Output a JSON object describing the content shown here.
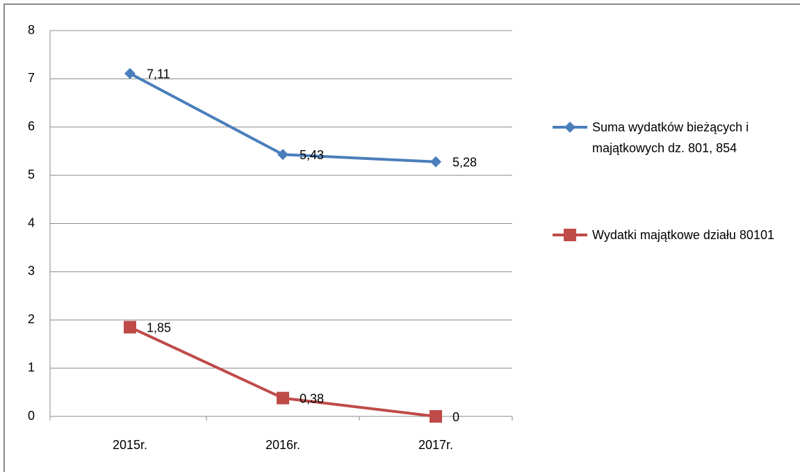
{
  "chart_data": {
    "type": "line",
    "categories": [
      "2015r.",
      "2016r.",
      "2017r."
    ],
    "series": [
      {
        "name": "Suma wydatków bieżących i majątkowych dz. 801, 854",
        "color": "#4a7ebb",
        "marker": "diamond",
        "values": [
          7.11,
          5.43,
          5.28
        ],
        "value_labels": [
          "7,11",
          "5,43",
          "5,28"
        ]
      },
      {
        "name": "Wydatki majątkowe działu 80101",
        "color": "#be4b48",
        "marker": "square",
        "values": [
          1.85,
          0.38,
          0
        ],
        "value_labels": [
          "1,85",
          "0,38",
          "0"
        ]
      }
    ],
    "ylim": [
      0,
      8
    ],
    "yticks": [
      0,
      1,
      2,
      3,
      4,
      5,
      6,
      7,
      8
    ],
    "grid": true,
    "legend": "right"
  }
}
